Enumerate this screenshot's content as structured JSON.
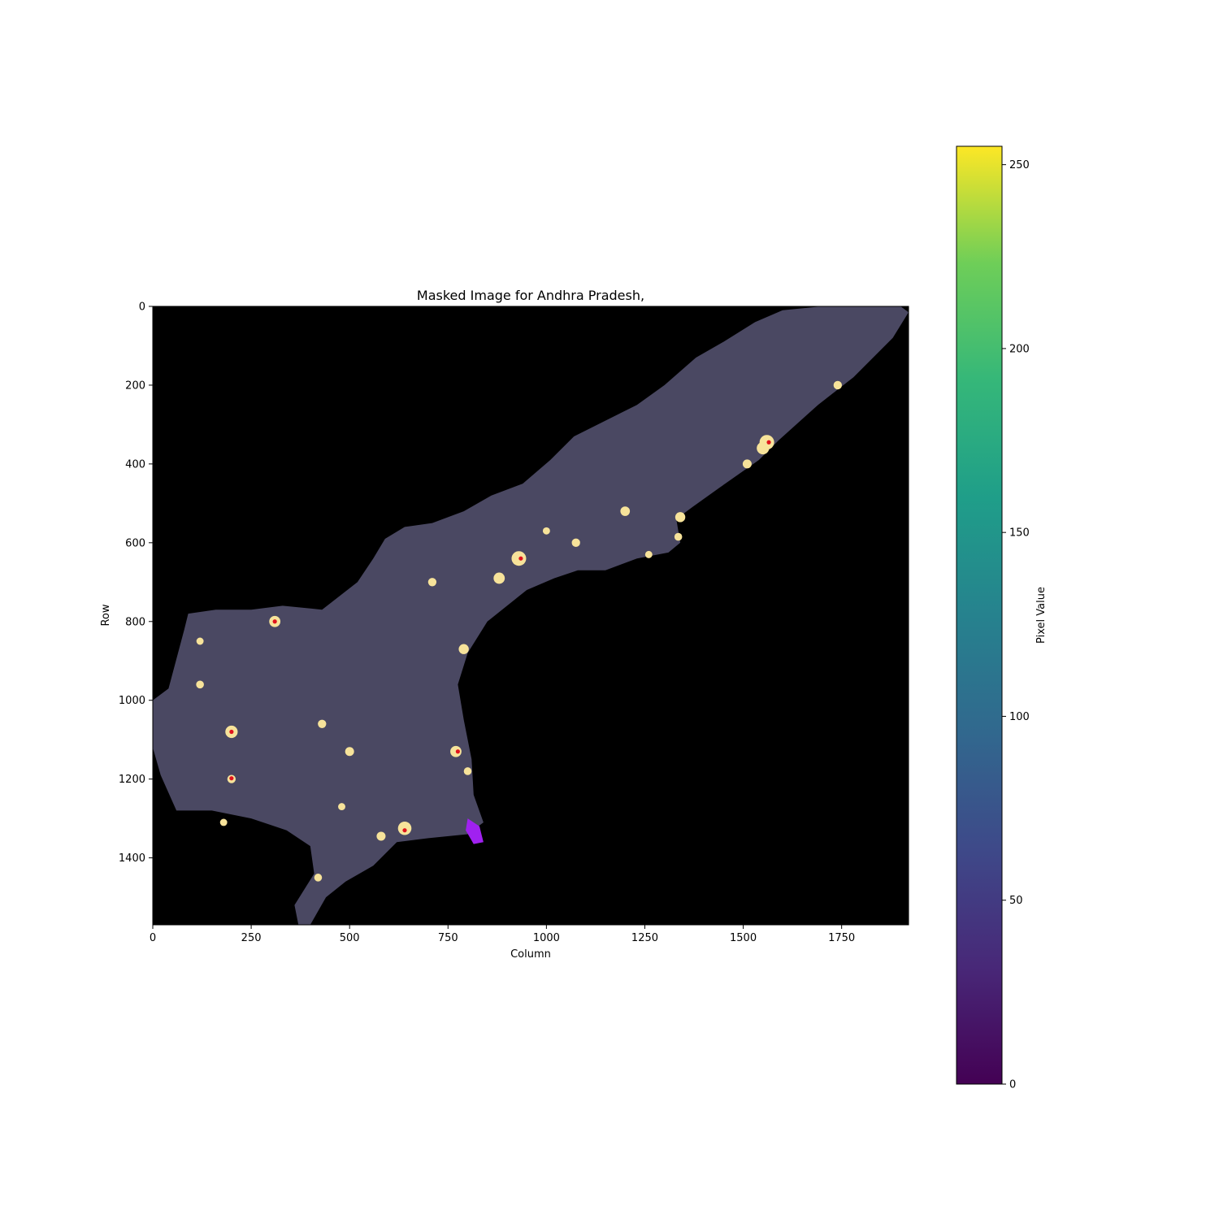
{
  "chart_data": {
    "type": "heatmap",
    "title": "Masked Image for Andhra Pradesh,",
    "xlabel": "Column",
    "ylabel": "Row",
    "xlim": [
      0,
      1920
    ],
    "ylim": [
      1570,
      0
    ],
    "x_ticks": [
      0,
      250,
      500,
      750,
      1000,
      1250,
      1500,
      1750
    ],
    "y_ticks": [
      0,
      200,
      400,
      600,
      800,
      1000,
      1200,
      1400
    ],
    "colorbar": {
      "label": "Pixel Value",
      "colormap": "viridis",
      "range": [
        0,
        255
      ],
      "ticks": [
        0,
        50,
        100,
        150,
        200,
        250
      ]
    },
    "background_color": "#000000",
    "colors": {
      "land_low_light": "#4a4862",
      "urban_light": "#f7e39a",
      "brightest_core": "#e0141c",
      "masked_patch": "#a021f0"
    },
    "region_outline_points": [
      [
        1900,
        0
      ],
      [
        1920,
        15
      ],
      [
        1880,
        80
      ],
      [
        1780,
        180
      ],
      [
        1690,
        250
      ],
      [
        1590,
        340
      ],
      [
        1540,
        390
      ],
      [
        1440,
        460
      ],
      [
        1370,
        510
      ],
      [
        1330,
        540
      ],
      [
        1340,
        600
      ],
      [
        1310,
        625
      ],
      [
        1230,
        640
      ],
      [
        1150,
        670
      ],
      [
        1080,
        670
      ],
      [
        1020,
        690
      ],
      [
        950,
        720
      ],
      [
        850,
        800
      ],
      [
        800,
        880
      ],
      [
        775,
        960
      ],
      [
        790,
        1050
      ],
      [
        810,
        1150
      ],
      [
        815,
        1240
      ],
      [
        840,
        1310
      ],
      [
        800,
        1340
      ],
      [
        700,
        1350
      ],
      [
        620,
        1360
      ],
      [
        560,
        1420
      ],
      [
        490,
        1460
      ],
      [
        440,
        1500
      ],
      [
        400,
        1570
      ],
      [
        370,
        1570
      ],
      [
        360,
        1520
      ],
      [
        410,
        1440
      ],
      [
        400,
        1370
      ],
      [
        340,
        1330
      ],
      [
        250,
        1300
      ],
      [
        150,
        1280
      ],
      [
        60,
        1280
      ],
      [
        20,
        1190
      ],
      [
        0,
        1120
      ],
      [
        0,
        1000
      ],
      [
        40,
        970
      ],
      [
        80,
        820
      ],
      [
        90,
        780
      ],
      [
        160,
        770
      ],
      [
        250,
        770
      ],
      [
        330,
        760
      ],
      [
        430,
        770
      ],
      [
        520,
        700
      ],
      [
        560,
        640
      ],
      [
        590,
        590
      ],
      [
        640,
        560
      ],
      [
        710,
        550
      ],
      [
        790,
        520
      ],
      [
        860,
        480
      ],
      [
        940,
        450
      ],
      [
        1010,
        390
      ],
      [
        1070,
        330
      ],
      [
        1150,
        290
      ],
      [
        1230,
        250
      ],
      [
        1300,
        200
      ],
      [
        1380,
        130
      ],
      [
        1450,
        90
      ],
      [
        1530,
        40
      ],
      [
        1600,
        10
      ],
      [
        1700,
        0
      ],
      [
        1850,
        0
      ]
    ],
    "urban_hotspots": [
      [
        1560,
        345,
        1
      ],
      [
        1550,
        360,
        0.8
      ],
      [
        1510,
        400,
        0.5
      ],
      [
        1740,
        200,
        0.45
      ],
      [
        1340,
        535,
        0.6
      ],
      [
        1335,
        585,
        0.4
      ],
      [
        1200,
        520,
        0.55
      ],
      [
        1075,
        600,
        0.45
      ],
      [
        930,
        640,
        1
      ],
      [
        880,
        690,
        0.7
      ],
      [
        790,
        870,
        0.6
      ],
      [
        770,
        1130,
        0.7
      ],
      [
        800,
        1180,
        0.4
      ],
      [
        640,
        1325,
        0.9
      ],
      [
        580,
        1345,
        0.5
      ],
      [
        500,
        1130,
        0.5
      ],
      [
        430,
        1060,
        0.45
      ],
      [
        310,
        800,
        0.7
      ],
      [
        200,
        1080,
        0.8
      ],
      [
        200,
        1200,
        0.45
      ],
      [
        120,
        960,
        0.4
      ],
      [
        120,
        850,
        0.35
      ],
      [
        180,
        1310,
        0.35
      ],
      [
        480,
        1270,
        0.35
      ],
      [
        710,
        700,
        0.45
      ],
      [
        420,
        1450,
        0.4
      ],
      [
        1000,
        570,
        0.35
      ],
      [
        1260,
        630,
        0.35
      ]
    ],
    "red_cores": [
      [
        1565,
        345
      ],
      [
        935,
        640
      ],
      [
        640,
        1330
      ],
      [
        775,
        1130
      ],
      [
        200,
        1080
      ],
      [
        200,
        1198
      ],
      [
        310,
        800
      ]
    ],
    "masked_patch_points": [
      [
        800,
        1300
      ],
      [
        830,
        1320
      ],
      [
        840,
        1360
      ],
      [
        815,
        1365
      ],
      [
        795,
        1330
      ]
    ]
  }
}
